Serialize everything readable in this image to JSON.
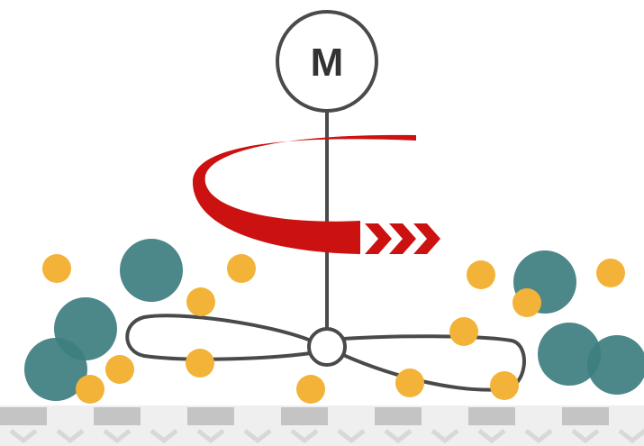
{
  "motor": {
    "label": "M"
  }
}
